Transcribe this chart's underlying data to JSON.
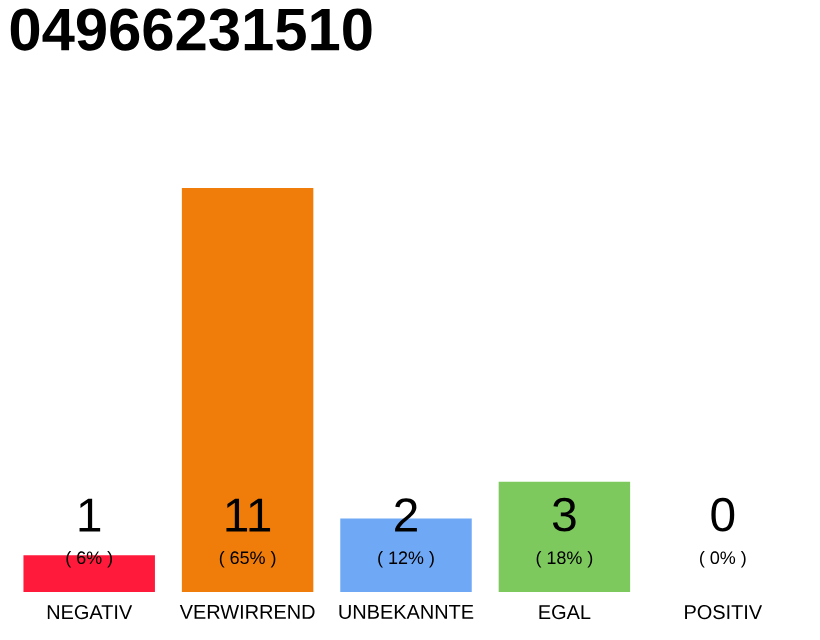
{
  "chart_data": {
    "type": "bar",
    "title": "04966231510",
    "categories": [
      "NEGATIV",
      "VERWIRREND",
      "UNBEKANNTE",
      "EGAL",
      "POSITIV"
    ],
    "values": [
      1,
      11,
      2,
      3,
      0
    ],
    "colors": [
      "#ff1a3c",
      "#f07d0a",
      "#6fa8f5",
      "#7dc95e",
      "#bbbbbb"
    ],
    "data_labels": true,
    "annotations": [
      "( 6% )",
      "( 65% )",
      "( 12% )",
      "( 18% )",
      "( 0% )"
    ]
  }
}
